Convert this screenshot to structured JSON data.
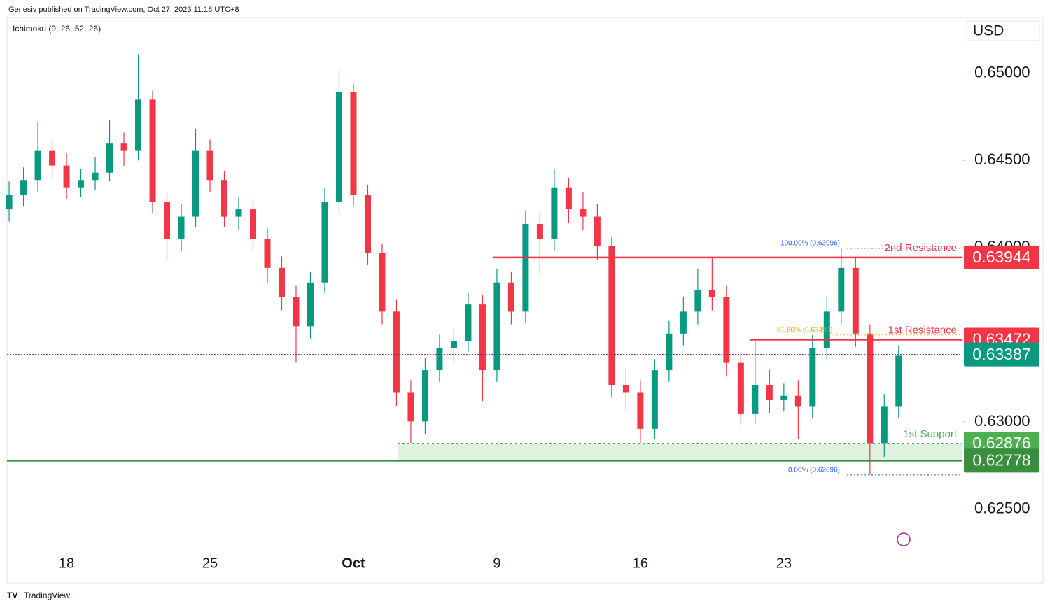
{
  "header": {
    "published": "Genesiv published on TradingView.com, Oct 27, 2023 11:18 UTC+8",
    "indicator": "Ichimoku (9, 26, 52, 26)"
  },
  "footer": {
    "brand": "TradingView"
  },
  "chart_data": {
    "type": "candlestick",
    "currency": "USD",
    "up_color": "#089981",
    "down_color": "#f23645",
    "open": [
      0.6422,
      0.64304,
      0.64388,
      0.64555,
      0.64471,
      0.64346,
      0.64388,
      0.6443,
      0.64597,
      0.64555,
      0.64849,
      0.64262,
      0.64052,
      0.64178,
      0.64555,
      0.64388,
      0.64178,
      0.6422,
      0.64052,
      0.63884,
      0.63716,
      0.63549,
      0.638,
      0.64262,
      0.64891,
      0.64304,
      0.63968,
      0.63633,
      0.63171,
      0.63003,
      0.63297,
      0.63423,
      0.63465,
      0.63674,
      0.63297,
      0.638,
      0.63633,
      0.64136,
      0.64052,
      0.64346,
      0.6422,
      0.64178,
      0.6401,
      0.63213,
      0.63171,
      0.62961,
      0.63297,
      0.63507,
      0.63633,
      0.63758,
      0.63716,
      0.63339,
      0.63045,
      0.63213,
      0.63129,
      0.6315,
      0.63087,
      0.63423,
      0.63633,
      0.63884,
      0.63507,
      0.62878,
      0.63087
    ],
    "high": [
      0.6438,
      0.6446,
      0.6472,
      0.6462,
      0.6454,
      0.6445,
      0.6452,
      0.6473,
      0.6466,
      0.6511,
      0.649,
      0.6432,
      0.6425,
      0.6468,
      0.6462,
      0.6444,
      0.6429,
      0.6428,
      0.6411,
      0.6395,
      0.6378,
      0.6386,
      0.6434,
      0.6502,
      0.6494,
      0.6436,
      0.6402,
      0.637,
      0.6324,
      0.6337,
      0.635,
      0.6354,
      0.6374,
      0.6373,
      0.6388,
      0.6386,
      0.6421,
      0.642,
      0.6445,
      0.644,
      0.6432,
      0.6425,
      0.6406,
      0.633,
      0.6324,
      0.6336,
      0.6358,
      0.6372,
      0.6388,
      0.6394,
      0.6378,
      0.634,
      0.6347,
      0.633,
      0.6322,
      0.6324,
      0.635,
      0.6372,
      0.63996,
      0.6394,
      0.6356,
      0.6316,
      0.6344
    ],
    "low": [
      0.6415,
      0.6424,
      0.6432,
      0.644,
      0.6428,
      0.6429,
      0.6433,
      0.6438,
      0.6447,
      0.645,
      0.642,
      0.6393,
      0.6398,
      0.6412,
      0.6432,
      0.6412,
      0.641,
      0.6398,
      0.638,
      0.6364,
      0.6334,
      0.6348,
      0.6374,
      0.642,
      0.6424,
      0.639,
      0.6356,
      0.6309,
      0.6288,
      0.6293,
      0.6323,
      0.6334,
      0.634,
      0.6312,
      0.6323,
      0.6356,
      0.6357,
      0.6385,
      0.6398,
      0.6414,
      0.641,
      0.6393,
      0.6314,
      0.6306,
      0.6288,
      0.629,
      0.6323,
      0.6344,
      0.6356,
      0.6364,
      0.6326,
      0.6298,
      0.6299,
      0.6305,
      0.6306,
      0.629,
      0.6302,
      0.6336,
      0.6356,
      0.6343,
      0.62696,
      0.628,
      0.6302
    ],
    "close": [
      0.64304,
      0.64388,
      0.64555,
      0.64471,
      0.64346,
      0.64388,
      0.6443,
      0.64597,
      0.64555,
      0.64849,
      0.64262,
      0.64052,
      0.64178,
      0.64555,
      0.64388,
      0.64178,
      0.6422,
      0.64052,
      0.63884,
      0.63716,
      0.63549,
      0.638,
      0.64262,
      0.64891,
      0.64304,
      0.63968,
      0.63633,
      0.63171,
      0.63003,
      0.63297,
      0.63423,
      0.63465,
      0.63674,
      0.63297,
      0.638,
      0.63633,
      0.64136,
      0.64052,
      0.64346,
      0.6422,
      0.64178,
      0.6401,
      0.63213,
      0.63171,
      0.62961,
      0.63297,
      0.63507,
      0.63633,
      0.63758,
      0.63716,
      0.63339,
      0.63045,
      0.63213,
      0.63129,
      0.6315,
      0.63087,
      0.63423,
      0.63633,
      0.63884,
      0.63507,
      0.62878,
      0.63087,
      0.6338
    ],
    "xlim": [
      -0.15,
      66.45
    ],
    "xticks": [
      {
        "value": 4,
        "label": "18"
      },
      {
        "value": 14,
        "label": "25"
      },
      {
        "value": 24,
        "label": "Oct"
      },
      {
        "value": 34,
        "label": "9"
      },
      {
        "value": 44,
        "label": "16"
      },
      {
        "value": 54,
        "label": "23"
      }
    ],
    "ylim": [
      0.6225,
      0.6532
    ],
    "yticks": [
      {
        "value": 0.625,
        "label": "0.62500"
      },
      {
        "value": 0.63,
        "label": "0.63000"
      },
      {
        "value": 0.64,
        "label": "0.64000"
      },
      {
        "value": 0.645,
        "label": "0.64500"
      },
      {
        "value": 0.65,
        "label": "0.65000"
      }
    ],
    "levels": [
      {
        "name": "2nd Resistance",
        "value": 0.63944,
        "color": "#f23645"
      },
      {
        "name": "1st Resistance",
        "value": 0.63472,
        "color": "#f23645"
      },
      {
        "value": 0.63387,
        "color": "#089981"
      },
      {
        "name": "1st Support",
        "value": 0.62876,
        "color": "#4caf50"
      },
      {
        "value": 0.62778,
        "color": "#388e3c"
      }
    ],
    "fib": [
      {
        "label": "100.00% (0.63996)",
        "value": 0.63996
      },
      {
        "label": "61.80% (0.63499)",
        "value": 0.63499
      },
      {
        "label": "0.00% (0.62696)",
        "value": 0.62696
      }
    ]
  }
}
